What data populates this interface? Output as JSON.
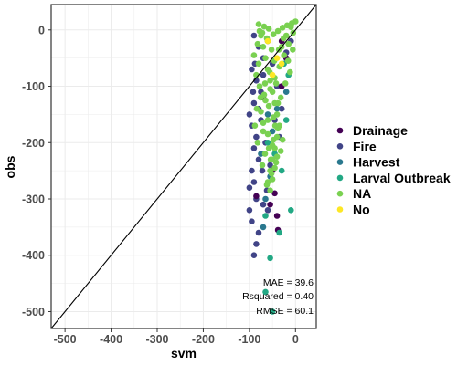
{
  "chart_data": {
    "type": "scatter",
    "xlabel": "svm",
    "ylabel": "obs",
    "xlim": [
      -530,
      45
    ],
    "ylim": [
      -530,
      45
    ],
    "x_ticks": [
      -500,
      -400,
      -300,
      -200,
      -100,
      0
    ],
    "y_ticks": [
      0,
      -100,
      -200,
      -300,
      -400,
      -500
    ],
    "x_tick_labels": [
      "-500",
      "-400",
      "-300",
      "-200",
      "-100",
      "0"
    ],
    "y_tick_labels": [
      "0",
      "-100",
      "-200",
      "-300",
      "-400",
      "-500"
    ],
    "grid": true,
    "reference_line": {
      "type": "identity",
      "from": [
        -530,
        -530
      ],
      "to": [
        45,
        45
      ],
      "color": "#000000"
    },
    "legend": {
      "position": "right",
      "entries": [
        {
          "label": "Drainage",
          "color": "#440154"
        },
        {
          "label": "Fire",
          "color": "#414487"
        },
        {
          "label": "Harvest",
          "color": "#2A788E"
        },
        {
          "label": "Larval Outbreak",
          "color": "#22A884"
        },
        {
          "label": "NA",
          "color": "#7AD151"
        },
        {
          "label": "No",
          "color": "#FDE725"
        }
      ]
    },
    "annotations": [
      "MAE = 39.6",
      "Rsquared = 0.40",
      "RMSE = 60.1"
    ],
    "series": [
      {
        "name": "Fire",
        "color": "#414487",
        "points": [
          [
            -90,
            -10
          ],
          [
            -80,
            -30
          ],
          [
            -70,
            -50
          ],
          [
            -95,
            -70
          ],
          [
            -85,
            -90
          ],
          [
            -75,
            -110
          ],
          [
            -90,
            -130
          ],
          [
            -100,
            -150
          ],
          [
            -95,
            -170
          ],
          [
            -85,
            -190
          ],
          [
            -90,
            -210
          ],
          [
            -80,
            -230
          ],
          [
            -95,
            -250
          ],
          [
            -90,
            -270
          ],
          [
            -100,
            -280
          ],
          [
            -85,
            -300
          ],
          [
            -70,
            -310
          ],
          [
            -60,
            -320
          ],
          [
            -100,
            -320
          ],
          [
            -95,
            -340
          ],
          [
            -80,
            -360
          ],
          [
            -85,
            -380
          ],
          [
            -90,
            -400
          ],
          [
            -70,
            -80
          ],
          [
            -60,
            -20
          ],
          [
            -50,
            -60
          ],
          [
            -40,
            -100
          ],
          [
            -30,
            -140
          ],
          [
            -10,
            -20
          ],
          [
            -20,
            -40
          ],
          [
            -45,
            -160
          ],
          [
            -35,
            -190
          ],
          [
            -75,
            -160
          ],
          [
            -65,
            -200
          ],
          [
            -55,
            -240
          ],
          [
            -80,
            -140
          ],
          [
            -88,
            -60
          ],
          [
            -72,
            -250
          ],
          [
            -62,
            -285
          ],
          [
            -92,
            -110
          ]
        ]
      },
      {
        "name": "Drainage",
        "color": "#440154",
        "points": [
          [
            -30,
            -20
          ],
          [
            -45,
            -290
          ],
          [
            -40,
            -330
          ],
          [
            -38,
            -355
          ],
          [
            -55,
            -310
          ],
          [
            -70,
            -120
          ],
          [
            -20,
            -50
          ],
          [
            -50,
            -250
          ],
          [
            -85,
            -295
          ],
          [
            -30,
            -100
          ]
        ]
      },
      {
        "name": "Harvest",
        "color": "#2A788E",
        "points": [
          [
            -55,
            -260
          ],
          [
            -65,
            -300
          ],
          [
            -70,
            -350
          ],
          [
            -50,
            -180
          ],
          [
            -40,
            -140
          ],
          [
            -20,
            -110
          ],
          [
            -75,
            -220
          ],
          [
            -60,
            -150
          ]
        ]
      },
      {
        "name": "Larval Outbreak",
        "color": "#22A884",
        "points": [
          [
            -60,
            -200
          ],
          [
            -55,
            -405
          ],
          [
            -50,
            -500
          ],
          [
            -65,
            -465
          ],
          [
            -10,
            -320
          ],
          [
            -35,
            -360
          ],
          [
            -30,
            -250
          ],
          [
            -15,
            -80
          ],
          [
            -45,
            -220
          ],
          [
            -20,
            -160
          ],
          [
            -65,
            -330
          ],
          [
            -25,
            -60
          ]
        ]
      },
      {
        "name": "NA",
        "color": "#7AD151",
        "points": [
          [
            -80,
            10
          ],
          [
            -75,
            -10
          ],
          [
            -70,
            -30
          ],
          [
            -65,
            -50
          ],
          [
            -60,
            -70
          ],
          [
            -55,
            -90
          ],
          [
            -50,
            -110
          ],
          [
            -45,
            -130
          ],
          [
            -40,
            -150
          ],
          [
            -35,
            -170
          ],
          [
            -40,
            -190
          ],
          [
            -45,
            -210
          ],
          [
            -50,
            -230
          ],
          [
            -55,
            -250
          ],
          [
            -60,
            -270
          ],
          [
            -30,
            -30
          ],
          [
            -20,
            -10
          ],
          [
            -10,
            5
          ],
          [
            0,
            15
          ],
          [
            -5,
            -5
          ],
          [
            -15,
            -25
          ],
          [
            -25,
            -45
          ],
          [
            -35,
            -65
          ],
          [
            -45,
            -85
          ],
          [
            -55,
            -105
          ],
          [
            -65,
            -125
          ],
          [
            -75,
            -145
          ],
          [
            -70,
            -165
          ],
          [
            -60,
            -185
          ],
          [
            -50,
            -205
          ],
          [
            -40,
            -225
          ],
          [
            -45,
            -245
          ],
          [
            -50,
            -265
          ],
          [
            -55,
            -285
          ],
          [
            -80,
            -60
          ],
          [
            -85,
            -80
          ],
          [
            -78,
            -100
          ],
          [
            -68,
            -115
          ],
          [
            -58,
            -135
          ],
          [
            -48,
            -155
          ],
          [
            -38,
            -175
          ],
          [
            -28,
            -195
          ],
          [
            -32,
            -215
          ],
          [
            -42,
            -235
          ],
          [
            -52,
            -255
          ],
          [
            -62,
            -275
          ],
          [
            -72,
            -240
          ],
          [
            -82,
            -200
          ],
          [
            -88,
            -170
          ],
          [
            -84,
            -140
          ],
          [
            -76,
            -120
          ],
          [
            -66,
            -95
          ],
          [
            -56,
            -75
          ],
          [
            -46,
            -55
          ],
          [
            -36,
            -35
          ],
          [
            -26,
            -15
          ],
          [
            -16,
            -55
          ],
          [
            -6,
            -35
          ],
          [
            -12,
            -75
          ],
          [
            -22,
            -95
          ],
          [
            -32,
            -120
          ],
          [
            -42,
            -95
          ],
          [
            -52,
            -35
          ],
          [
            -62,
            -15
          ],
          [
            -72,
            -5
          ],
          [
            -82,
            -25
          ],
          [
            -90,
            -45
          ],
          [
            -8,
            12
          ],
          [
            -18,
            8
          ],
          [
            -28,
            4
          ],
          [
            -38,
            -2
          ],
          [
            -48,
            -8
          ],
          [
            -58,
            2
          ],
          [
            -68,
            6
          ],
          [
            -78,
            -2
          ],
          [
            -70,
            -180
          ],
          [
            -58,
            -210
          ],
          [
            -48,
            -195
          ],
          [
            -38,
            -130
          ],
          [
            -60,
            -160
          ],
          [
            -44,
            -170
          ],
          [
            -66,
            -220
          ],
          [
            -54,
            -230
          ]
        ]
      },
      {
        "name": "No",
        "color": "#FDE725",
        "points": [
          [
            -60,
            -20
          ],
          [
            -40,
            -50
          ],
          [
            -50,
            -80
          ],
          [
            -30,
            -60
          ]
        ]
      }
    ]
  }
}
